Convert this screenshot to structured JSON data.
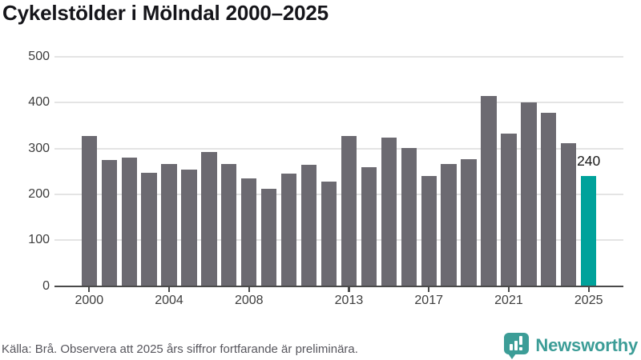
{
  "title": "Cykelstölder i Mölndal 2000–2025",
  "chart_data": {
    "type": "bar",
    "title": "Cykelstölder i Mölndal 2000–2025",
    "x": [
      2000,
      2001,
      2002,
      2003,
      2004,
      2005,
      2006,
      2007,
      2008,
      2009,
      2010,
      2011,
      2012,
      2013,
      2014,
      2015,
      2016,
      2017,
      2018,
      2019,
      2020,
      2021,
      2022,
      2023,
      2024,
      2025
    ],
    "values": [
      328,
      275,
      280,
      247,
      267,
      254,
      292,
      266,
      235,
      212,
      245,
      265,
      228,
      327,
      259,
      324,
      301,
      240,
      266,
      276,
      414,
      332,
      400,
      378,
      312,
      240
    ],
    "ylim": [
      0,
      500
    ],
    "yticks": [
      0,
      100,
      200,
      300,
      400,
      500
    ],
    "xticks": [
      2000,
      2004,
      2008,
      2013,
      2017,
      2021,
      2025
    ],
    "grid": "horizontal",
    "legend": "none",
    "bar_color": "#6c6a71",
    "highlight_x": 2025,
    "highlight_color": "#00a29b",
    "annotation": {
      "x": 2025,
      "label": "240"
    }
  },
  "footer": {
    "source": "Källa: Brå. Observera att 2025 års siffror fortfarande är preliminära.",
    "brand": "Newsworthy"
  },
  "colors": {
    "bar_gray": "#6c6a71",
    "accent_teal": "#00a29b",
    "brand_teal": "#3c9d97"
  }
}
